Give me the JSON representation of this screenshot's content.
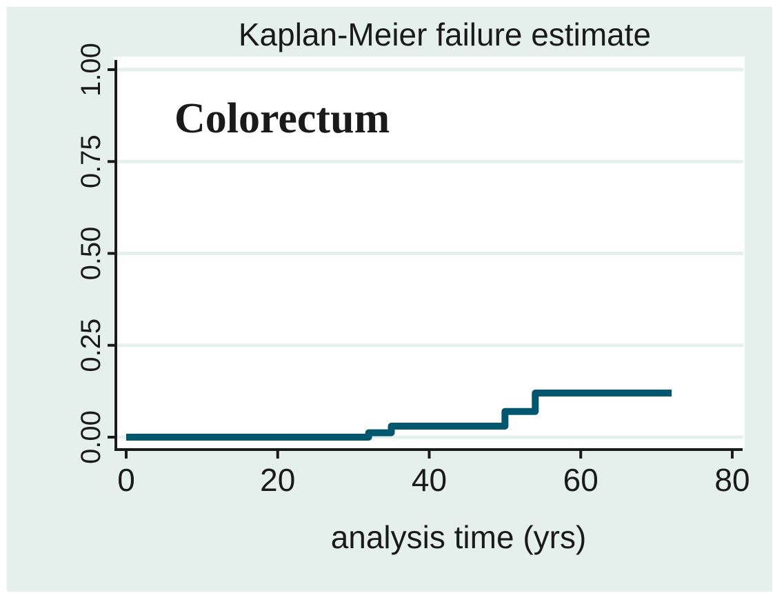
{
  "chart_data": {
    "type": "line",
    "step": true,
    "title": "Kaplan-Meier failure estimate",
    "annotation": "Colorectum",
    "xlabel": "analysis time (yrs)",
    "ylabel": "",
    "xlim": [
      0,
      80
    ],
    "ylim": [
      0,
      1
    ],
    "x_ticks": [
      0,
      20,
      40,
      60,
      80
    ],
    "x_tick_labels": [
      "0",
      "20",
      "40",
      "60",
      "80"
    ],
    "y_ticks": [
      0,
      0.25,
      0.5,
      0.75,
      1
    ],
    "y_tick_labels": [
      "0.00",
      "0.25",
      "0.50",
      "0.75",
      "1.00"
    ],
    "grid": true,
    "series": [
      {
        "x": [
          0,
          32,
          35,
          50,
          54,
          72
        ],
        "y": [
          0,
          0.012,
          0.03,
          0.07,
          0.12,
          0.12
        ]
      }
    ]
  },
  "colors": {
    "frame_background": "#e5f0ec",
    "plot_background": "#ffffff",
    "gridline": "#e5f0ec",
    "axis": "#1a1a1a",
    "series_line": "#02566e",
    "text": "#1a1a1a"
  }
}
